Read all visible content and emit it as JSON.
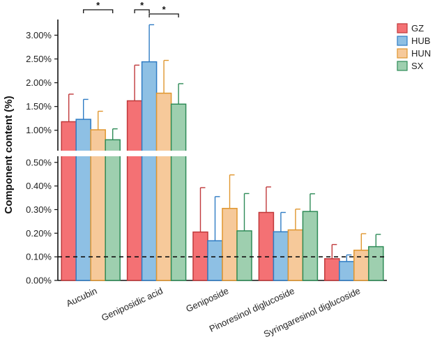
{
  "chart_data": {
    "type": "bar",
    "title": "",
    "xlabel": "",
    "ylabel": "Component content (%)",
    "categories": [
      "Aucubin",
      "Geniposidic acid",
      "Geniposide",
      "Pinoresinol diglucoside",
      "Syringaresinol diglucoside"
    ],
    "series": [
      {
        "name": "GZ",
        "fill": "#F47174",
        "stroke": "#C0393B",
        "values": [
          1.18,
          1.62,
          0.205,
          0.288,
          0.092
        ],
        "errors": [
          0.58,
          0.75,
          0.188,
          0.108,
          0.06
        ]
      },
      {
        "name": "HUB",
        "fill": "#8EC0E4",
        "stroke": "#2F7CC4",
        "values": [
          1.23,
          2.44,
          0.168,
          0.206,
          0.08
        ],
        "errors": [
          0.42,
          0.78,
          0.187,
          0.082,
          0.028
        ]
      },
      {
        "name": "HUN",
        "fill": "#F6C99A",
        "stroke": "#E0962E",
        "values": [
          1.01,
          1.78,
          0.305,
          0.214,
          0.128
        ],
        "errors": [
          0.39,
          0.69,
          0.142,
          0.088,
          0.07
        ]
      },
      {
        "name": "SX",
        "fill": "#9ECFAF",
        "stroke": "#2E8B57",
        "values": [
          0.8,
          1.55,
          0.21,
          0.292,
          0.143
        ],
        "errors": [
          0.23,
          0.43,
          0.158,
          0.075,
          0.052
        ]
      }
    ],
    "y_axis": {
      "lower_range": [
        0,
        0.52
      ],
      "upper_range": [
        0.6,
        3.3
      ],
      "lower_ticks": [
        0.0,
        0.1,
        0.2,
        0.3,
        0.4,
        0.5
      ],
      "lower_tick_labels": [
        "0.00%",
        "0.10%",
        "0.20%",
        "0.30%",
        "0.40%",
        "0.50%"
      ],
      "upper_ticks": [
        1.0,
        1.5,
        2.0,
        2.5,
        3.0
      ],
      "upper_tick_labels": [
        "1.00%",
        "1.50%",
        "2.00%",
        "2.50%",
        "3.00%"
      ]
    },
    "reference_line": {
      "value": 0.1,
      "style": "dashed"
    },
    "significance": [
      {
        "category": 0,
        "from_series": 1,
        "to_series": 3,
        "label": "*"
      },
      {
        "category": 1,
        "from_series": 0,
        "to_series": 1,
        "label": "*"
      },
      {
        "category": 1,
        "from_series": 1,
        "to_series": 3,
        "label": "*"
      }
    ],
    "legend": {
      "position": "top-right",
      "entries": [
        "GZ",
        "HUB",
        "HUN",
        "SX"
      ]
    },
    "grid": false
  }
}
